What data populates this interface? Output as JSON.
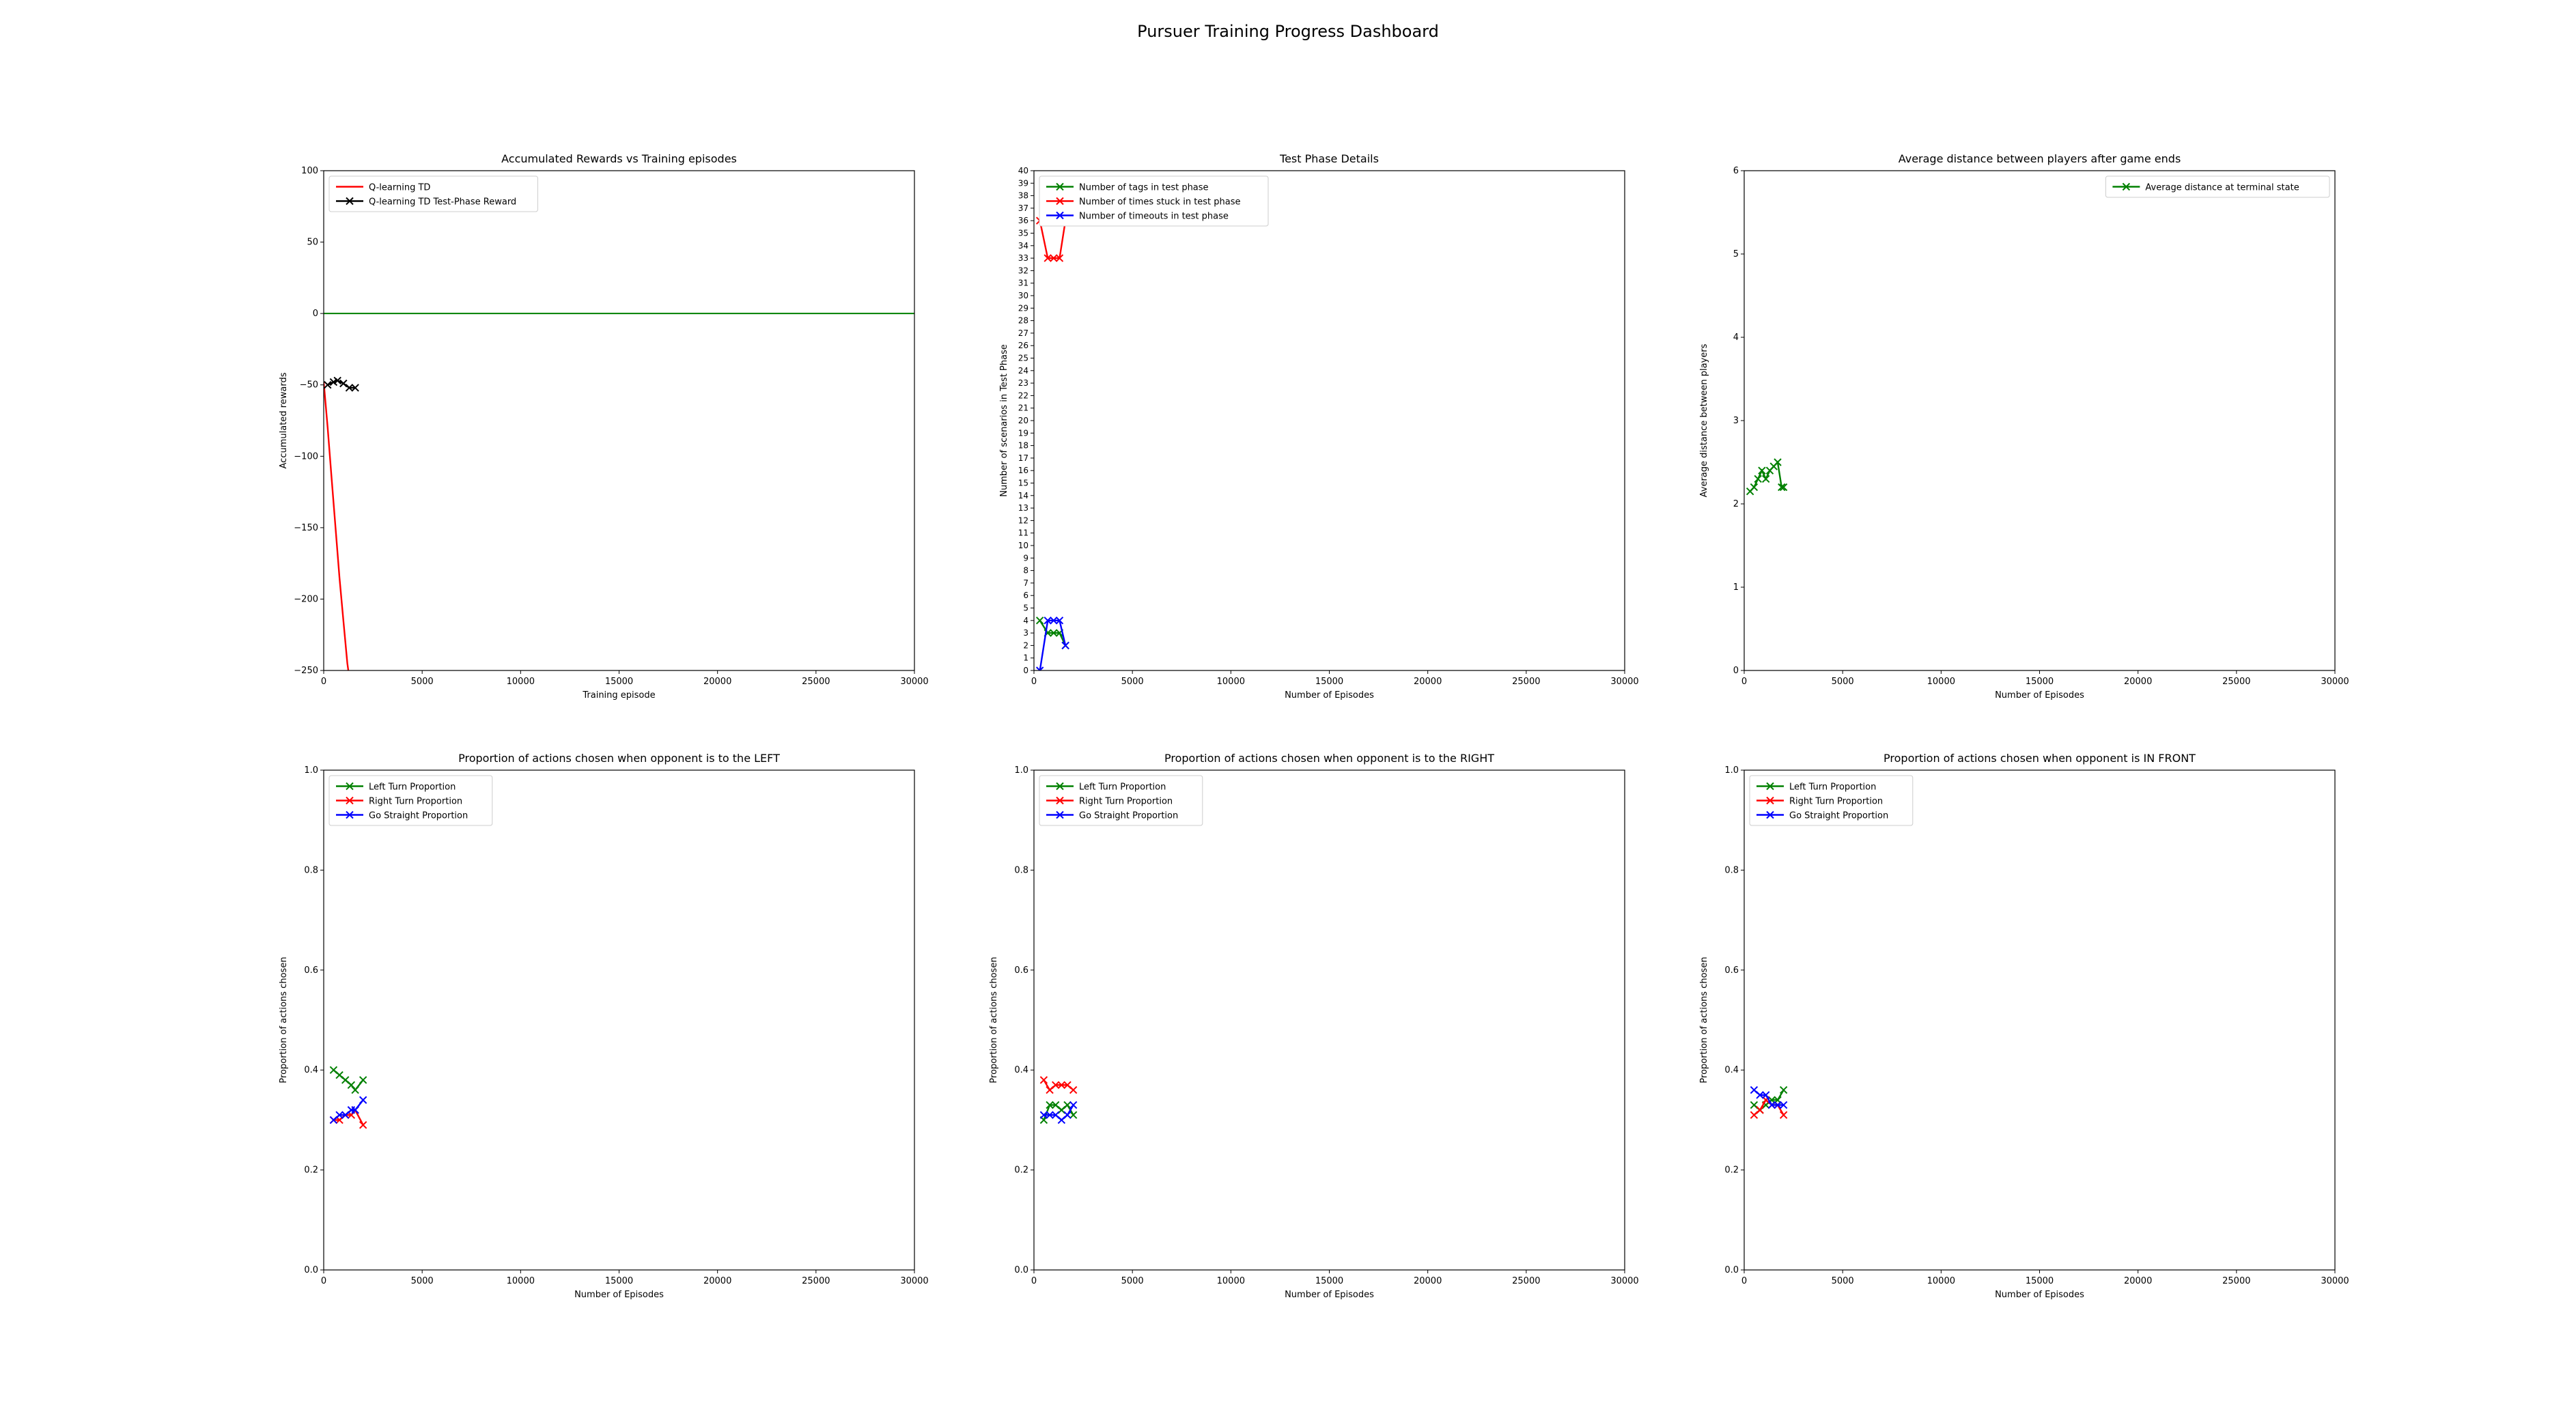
{
  "suptitle": "Pursuer Training Progress Dashboard",
  "chart_data": [
    {
      "type": "line",
      "title": "Accumulated Rewards vs Training episodes",
      "xlabel": "Training episode",
      "ylabel": "Accumulated rewards",
      "xlim": [
        0,
        30000
      ],
      "ylim": [
        -250,
        100
      ],
      "xticks": [
        0,
        5000,
        10000,
        15000,
        20000,
        25000,
        30000
      ],
      "yticks": [
        -250,
        -200,
        -150,
        -100,
        -50,
        0,
        50,
        100
      ],
      "grid": false,
      "legend": "upper left",
      "hlines": [
        {
          "y": 0,
          "color": "#008000"
        }
      ],
      "series": [
        {
          "name": "Q-learning TD",
          "color": "#ff0000",
          "marker": "",
          "x": [
            0,
            200,
            400,
            600,
            800,
            1000,
            1200,
            1300
          ],
          "y": [
            -48,
            -80,
            -115,
            -150,
            -185,
            -215,
            -245,
            -255
          ]
        },
        {
          "name": "Q-learning TD Test-Phase Reward",
          "color": "#000000",
          "marker": "x",
          "x": [
            200,
            500,
            700,
            1000,
            1300,
            1600
          ],
          "y": [
            -50,
            -48,
            -47,
            -49,
            -52,
            -52
          ]
        }
      ]
    },
    {
      "type": "line",
      "title": "Test Phase Details",
      "xlabel": "Number of Episodes",
      "ylabel": "Number of scenarios in Test Phase",
      "xlim": [
        0,
        30000
      ],
      "ylim": [
        0,
        40
      ],
      "xticks": [
        0,
        5000,
        10000,
        15000,
        20000,
        25000,
        30000
      ],
      "yticks": [
        0,
        1,
        2,
        3,
        4,
        5,
        6,
        7,
        8,
        9,
        10,
        11,
        12,
        13,
        14,
        15,
        16,
        17,
        18,
        19,
        20,
        21,
        22,
        23,
        24,
        25,
        26,
        27,
        28,
        29,
        30,
        31,
        32,
        33,
        34,
        35,
        36,
        37,
        38,
        39,
        40
      ],
      "grid": false,
      "legend": "upper left",
      "series": [
        {
          "name": "Number of tags in test phase",
          "color": "#008000",
          "marker": "x",
          "x": [
            300,
            700,
            1000,
            1300,
            1600
          ],
          "y": [
            4,
            3,
            3,
            3,
            2
          ]
        },
        {
          "name": "Number of times stuck in test phase",
          "color": "#ff0000",
          "marker": "x",
          "x": [
            300,
            700,
            1000,
            1300,
            1600
          ],
          "y": [
            36,
            33,
            33,
            33,
            36
          ]
        },
        {
          "name": "Number of timeouts in test phase",
          "color": "#0000ff",
          "marker": "x",
          "x": [
            300,
            700,
            1000,
            1300,
            1600
          ],
          "y": [
            0,
            4,
            4,
            4,
            2
          ]
        }
      ]
    },
    {
      "type": "line",
      "title": "Average distance between players after game ends",
      "xlabel": "Number of Episodes",
      "ylabel": "Average distance between players",
      "xlim": [
        0,
        30000
      ],
      "ylim": [
        0,
        6
      ],
      "xticks": [
        0,
        5000,
        10000,
        15000,
        20000,
        25000,
        30000
      ],
      "yticks": [
        0,
        1,
        2,
        3,
        4,
        5,
        6
      ],
      "grid": false,
      "legend": "upper right",
      "series": [
        {
          "name": "Average distance at terminal state",
          "color": "#008000",
          "marker": "x",
          "x": [
            300,
            500,
            700,
            900,
            1100,
            1300,
            1500,
            1700,
            1900,
            2000
          ],
          "y": [
            2.15,
            2.2,
            2.3,
            2.4,
            2.3,
            2.4,
            2.45,
            2.5,
            2.2,
            2.2
          ]
        }
      ]
    },
    {
      "type": "line",
      "title": "Proportion of actions chosen when opponent is to the LEFT",
      "xlabel": "Number of Episodes",
      "ylabel": "Proportion of actions chosen",
      "xlim": [
        0,
        30000
      ],
      "ylim": [
        0.0,
        1.0
      ],
      "xticks": [
        0,
        5000,
        10000,
        15000,
        20000,
        25000,
        30000
      ],
      "yticks": [
        0.0,
        0.2,
        0.4,
        0.6,
        0.8,
        1.0
      ],
      "grid": false,
      "legend": "upper left",
      "series": [
        {
          "name": "Left Turn Proportion",
          "color": "#008000",
          "marker": "x",
          "x": [
            500,
            800,
            1100,
            1400,
            1600,
            2000
          ],
          "y": [
            0.4,
            0.39,
            0.38,
            0.37,
            0.36,
            0.38
          ]
        },
        {
          "name": "Right Turn Proportion",
          "color": "#ff0000",
          "marker": "x",
          "x": [
            500,
            800,
            1100,
            1400,
            1600,
            2000
          ],
          "y": [
            0.3,
            0.3,
            0.31,
            0.31,
            0.32,
            0.29
          ]
        },
        {
          "name": "Go Straight Proportion",
          "color": "#0000ff",
          "marker": "x",
          "x": [
            500,
            800,
            1100,
            1400,
            1600,
            2000
          ],
          "y": [
            0.3,
            0.31,
            0.31,
            0.32,
            0.32,
            0.34
          ]
        }
      ]
    },
    {
      "type": "line",
      "title": "Proportion of actions chosen when opponent is to the RIGHT",
      "xlabel": "Number of Episodes",
      "ylabel": "Proportion of actions chosen",
      "xlim": [
        0,
        30000
      ],
      "ylim": [
        0.0,
        1.0
      ],
      "xticks": [
        0,
        5000,
        10000,
        15000,
        20000,
        25000,
        30000
      ],
      "yticks": [
        0.0,
        0.2,
        0.4,
        0.6,
        0.8,
        1.0
      ],
      "grid": false,
      "legend": "upper left",
      "series": [
        {
          "name": "Left Turn Proportion",
          "color": "#008000",
          "marker": "x",
          "x": [
            500,
            800,
            1100,
            1400,
            1700,
            2000
          ],
          "y": [
            0.3,
            0.33,
            0.33,
            0.32,
            0.33,
            0.31
          ]
        },
        {
          "name": "Right Turn Proportion",
          "color": "#ff0000",
          "marker": "x",
          "x": [
            500,
            800,
            1100,
            1400,
            1700,
            2000
          ],
          "y": [
            0.38,
            0.36,
            0.37,
            0.37,
            0.37,
            0.36
          ]
        },
        {
          "name": "Go Straight Proportion",
          "color": "#0000ff",
          "marker": "x",
          "x": [
            500,
            800,
            1100,
            1400,
            1700,
            2000
          ],
          "y": [
            0.31,
            0.31,
            0.31,
            0.3,
            0.31,
            0.33
          ]
        }
      ]
    },
    {
      "type": "line",
      "title": "Proportion of actions chosen when opponent is IN FRONT",
      "xlabel": "Number of Episodes",
      "ylabel": "Proportion of actions chosen",
      "xlim": [
        0,
        30000
      ],
      "ylim": [
        0.0,
        1.0
      ],
      "xticks": [
        0,
        5000,
        10000,
        15000,
        20000,
        25000,
        30000
      ],
      "yticks": [
        0.0,
        0.2,
        0.4,
        0.6,
        0.8,
        1.0
      ],
      "grid": false,
      "legend": "upper left",
      "series": [
        {
          "name": "Left Turn Proportion",
          "color": "#008000",
          "marker": "x",
          "x": [
            500,
            800,
            1100,
            1400,
            1700,
            2000
          ],
          "y": [
            0.33,
            0.32,
            0.33,
            0.34,
            0.34,
            0.36
          ]
        },
        {
          "name": "Right Turn Proportion",
          "color": "#ff0000",
          "marker": "x",
          "x": [
            500,
            800,
            1100,
            1400,
            1700,
            2000
          ],
          "y": [
            0.31,
            0.32,
            0.34,
            0.33,
            0.33,
            0.31
          ]
        },
        {
          "name": "Go Straight Proportion",
          "color": "#0000ff",
          "marker": "x",
          "x": [
            500,
            800,
            1100,
            1400,
            1700,
            2000
          ],
          "y": [
            0.36,
            0.35,
            0.35,
            0.33,
            0.33,
            0.33
          ]
        }
      ]
    }
  ]
}
